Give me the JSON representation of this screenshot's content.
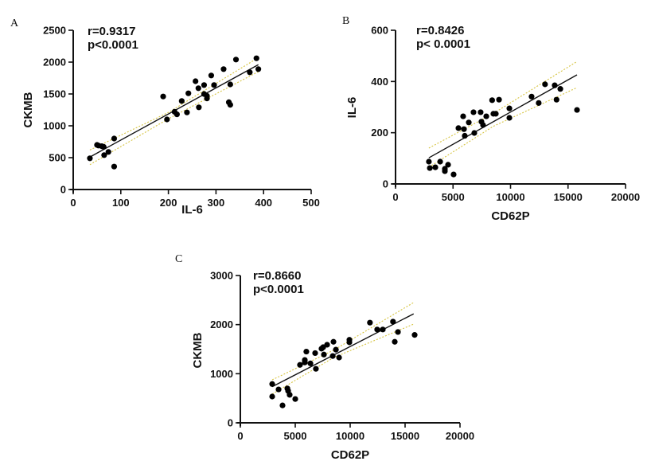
{
  "chart_data": [
    {
      "panel": "A",
      "type": "scatter",
      "title": "",
      "xlabel": "IL-6",
      "ylabel": "CKMB",
      "xlim": [
        0,
        500
      ],
      "ylim": [
        0,
        2500
      ],
      "xticks": [
        0,
        100,
        200,
        300,
        400,
        500
      ],
      "yticks": [
        0,
        500,
        1000,
        1500,
        2000,
        2500
      ],
      "annotation": [
        "r=0.9317",
        "p<0.0001"
      ],
      "grid": false,
      "points": [
        [
          35,
          490
        ],
        [
          50,
          700
        ],
        [
          53,
          690
        ],
        [
          60,
          680
        ],
        [
          64,
          670
        ],
        [
          65,
          540
        ],
        [
          74,
          590
        ],
        [
          86,
          800
        ],
        [
          86,
          360
        ],
        [
          189,
          1460
        ],
        [
          197,
          1100
        ],
        [
          213,
          1220
        ],
        [
          218,
          1180
        ],
        [
          228,
          1390
        ],
        [
          239,
          1210
        ],
        [
          242,
          1510
        ],
        [
          257,
          1700
        ],
        [
          263,
          1590
        ],
        [
          264,
          1290
        ],
        [
          275,
          1640
        ],
        [
          275,
          1500
        ],
        [
          281,
          1470
        ],
        [
          281,
          1430
        ],
        [
          290,
          1790
        ],
        [
          296,
          1640
        ],
        [
          316,
          1890
        ],
        [
          327,
          1370
        ],
        [
          330,
          1330
        ],
        [
          330,
          1650
        ],
        [
          342,
          2040
        ],
        [
          371,
          1840
        ],
        [
          385,
          2060
        ],
        [
          389,
          1890
        ]
      ],
      "regression": {
        "x": [
          35,
          389
        ],
        "y": [
          510,
          1960
        ]
      },
      "ci_upper": {
        "x": [
          35,
          200,
          389
        ],
        "y": [
          620,
          1210,
          2070
        ]
      },
      "ci_lower": {
        "x": [
          35,
          200,
          389
        ],
        "y": [
          390,
          1110,
          1850
        ]
      }
    },
    {
      "panel": "B",
      "type": "scatter",
      "title": "",
      "xlabel": "CD62P",
      "ylabel": "IL-6",
      "xlim": [
        0,
        20000
      ],
      "ylim": [
        0,
        600
      ],
      "xticks": [
        0,
        5000,
        10000,
        15000,
        20000
      ],
      "yticks": [
        0,
        200,
        400,
        600
      ],
      "annotation": [
        "r=0.8426",
        "p< 0.0001"
      ],
      "grid": false,
      "points": [
        [
          2900,
          87
        ],
        [
          2980,
          62
        ],
        [
          3460,
          65
        ],
        [
          3880,
          87
        ],
        [
          4290,
          59
        ],
        [
          4290,
          50
        ],
        [
          4570,
          75
        ],
        [
          5050,
          37
        ],
        [
          5470,
          218
        ],
        [
          5880,
          264
        ],
        [
          5950,
          214
        ],
        [
          6020,
          188
        ],
        [
          6370,
          240
        ],
        [
          6780,
          280
        ],
        [
          6850,
          199
        ],
        [
          7400,
          280
        ],
        [
          7470,
          243
        ],
        [
          7610,
          230
        ],
        [
          7890,
          264
        ],
        [
          8400,
          327
        ],
        [
          8510,
          274
        ],
        [
          8720,
          274
        ],
        [
          9000,
          329
        ],
        [
          9900,
          295
        ],
        [
          9900,
          258
        ],
        [
          11830,
          341
        ],
        [
          12450,
          316
        ],
        [
          13000,
          389
        ],
        [
          13840,
          385
        ],
        [
          14000,
          329
        ],
        [
          14330,
          371
        ],
        [
          15780,
          289
        ]
      ],
      "regression": {
        "x": [
          2900,
          15780
        ],
        "y": [
          102,
          426
        ]
      },
      "ci_upper": {
        "x": [
          2900,
          8500,
          15780
        ],
        "y": [
          140,
          275,
          478
        ]
      },
      "ci_lower": {
        "x": [
          2900,
          8500,
          15780
        ],
        "y": [
          65,
          225,
          376
        ]
      }
    },
    {
      "panel": "C",
      "type": "scatter",
      "title": "",
      "xlabel": "CD62P",
      "ylabel": "CKMB",
      "xlim": [
        0,
        20000
      ],
      "ylim": [
        0,
        3000
      ],
      "xticks": [
        0,
        5000,
        10000,
        15000,
        20000
      ],
      "yticks": [
        0,
        1000,
        2000,
        3000
      ],
      "annotation": [
        "r=0.8660",
        "p<0.0001"
      ],
      "grid": false,
      "points": [
        [
          2900,
          790
        ],
        [
          2900,
          535
        ],
        [
          3480,
          680
        ],
        [
          3840,
          355
        ],
        [
          4280,
          700
        ],
        [
          4350,
          650
        ],
        [
          4490,
          570
        ],
        [
          5000,
          485
        ],
        [
          5430,
          1180
        ],
        [
          5870,
          1280
        ],
        [
          5870,
          1230
        ],
        [
          6010,
          1450
        ],
        [
          6380,
          1210
        ],
        [
          6810,
          1420
        ],
        [
          6880,
          1100
        ],
        [
          7390,
          1510
        ],
        [
          7540,
          1540
        ],
        [
          7610,
          1390
        ],
        [
          7900,
          1590
        ],
        [
          8410,
          1360
        ],
        [
          8480,
          1650
        ],
        [
          8700,
          1490
        ],
        [
          8990,
          1330
        ],
        [
          9930,
          1690
        ],
        [
          9930,
          1640
        ],
        [
          11800,
          2040
        ],
        [
          12460,
          1900
        ],
        [
          12970,
          1900
        ],
        [
          13900,
          2060
        ],
        [
          14060,
          1650
        ],
        [
          14350,
          1850
        ],
        [
          15870,
          1790
        ]
      ],
      "regression": {
        "x": [
          2900,
          15780
        ],
        "y": [
          735,
          2220
        ]
      },
      "ci_upper": {
        "x": [
          2900,
          8500,
          15780
        ],
        "y": [
          875,
          1480,
          2450
        ]
      },
      "ci_lower": {
        "x": [
          2900,
          8500,
          15780
        ],
        "y": [
          585,
          1330,
          2010
        ]
      }
    }
  ]
}
